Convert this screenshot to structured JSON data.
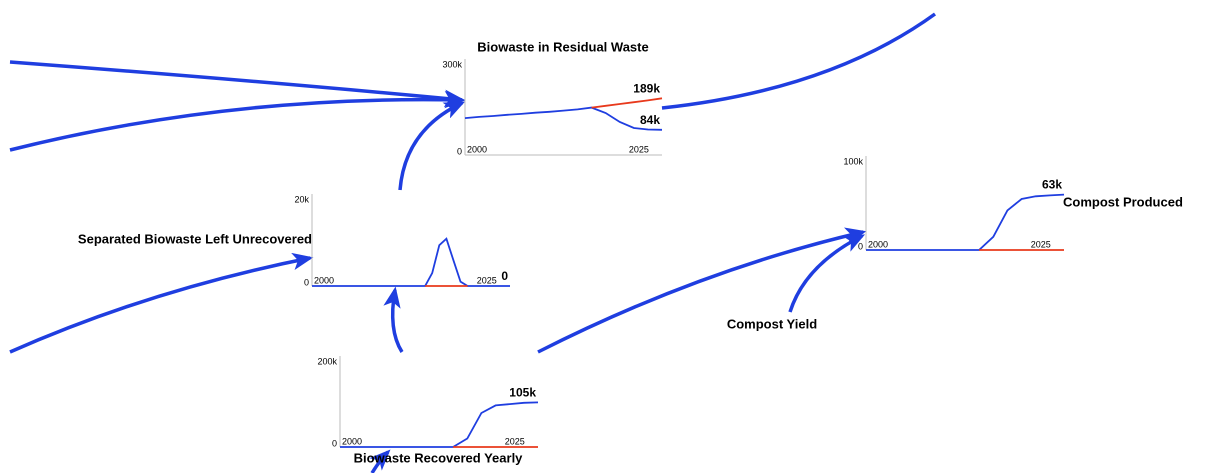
{
  "nodes": [
    {
      "label": "Biowaste in Residual Waste",
      "chart": {
        "xlim": [
          2000,
          2028
        ],
        "ylim": [
          0,
          300000
        ],
        "xticks": [
          2000,
          2025
        ],
        "yticks": [
          0,
          {
            "value": 300000,
            "label": "300k"
          }
        ],
        "x": [
          2000,
          2002,
          2004,
          2006,
          2008,
          2010,
          2012,
          2014,
          2016,
          2018,
          2020,
          2022,
          2024,
          2026,
          2028
        ],
        "series": [
          {
            "color": "#1f3ee0",
            "values": [
              123000,
              127000,
              130000,
              134000,
              137000,
              141000,
              144000,
              148000,
              152000,
              158000,
              140000,
              110000,
              90000,
              85000,
              84000
            ],
            "end_label": {
              "value": 84000,
              "label": "84k"
            }
          },
          {
            "color": "#e8391c",
            "values": [
              null,
              null,
              null,
              null,
              null,
              null,
              null,
              null,
              null,
              158000,
              164000,
              170000,
              176000,
              182000,
              189000
            ],
            "end_label": {
              "value": 189000,
              "label": "189k"
            }
          }
        ]
      }
    },
    {
      "label": "Separated Biowaste Left Unrecovered",
      "chart": {
        "xlim": [
          2000,
          2028
        ],
        "ylim": [
          0,
          20000
        ],
        "xticks": [
          2000,
          2025
        ],
        "yticks": [
          0,
          {
            "value": 20000,
            "label": "20k"
          }
        ],
        "x": [
          2000,
          2002,
          2004,
          2006,
          2008,
          2010,
          2012,
          2014,
          2016,
          2017,
          2018,
          2019,
          2020,
          2021,
          2022,
          2024,
          2026,
          2028
        ],
        "series": [
          {
            "color": "#1f3ee0",
            "values": [
              0,
              0,
              0,
              0,
              0,
              0,
              0,
              0,
              0,
              3000,
              9500,
              11000,
              6000,
              1000,
              0,
              0,
              0,
              0
            ],
            "end_label": 0
          },
          {
            "color": "#e8391c",
            "values": [
              null,
              null,
              null,
              null,
              null,
              null,
              null,
              null,
              0,
              0,
              0,
              0,
              0,
              0,
              0,
              null,
              null,
              null
            ]
          }
        ]
      }
    },
    {
      "label": "Biowaste Recovered Yearly",
      "chart": {
        "xlim": [
          2000,
          2028
        ],
        "ylim": [
          0,
          200000
        ],
        "xticks": [
          2000,
          2025
        ],
        "yticks": [
          0,
          {
            "value": 200000,
            "label": "200k"
          }
        ],
        "x": [
          2000,
          2002,
          2004,
          2006,
          2008,
          2010,
          2012,
          2014,
          2016,
          2018,
          2020,
          2022,
          2024,
          2026,
          2028
        ],
        "series": [
          {
            "color": "#1f3ee0",
            "values": [
              0,
              0,
              0,
              0,
              0,
              0,
              0,
              0,
              0,
              20000,
              80000,
              98000,
              101000,
              104000,
              105000
            ],
            "end_label": {
              "value": 105000,
              "label": "105k"
            }
          },
          {
            "color": "#e8391c",
            "values": [
              null,
              null,
              null,
              null,
              null,
              null,
              null,
              null,
              0,
              0,
              0,
              0,
              0,
              0,
              0
            ]
          }
        ]
      }
    },
    {
      "label": "Compost Produced",
      "chart": {
        "xlim": [
          2000,
          2028
        ],
        "ylim": [
          0,
          100000
        ],
        "xticks": [
          2000,
          2025
        ],
        "yticks": [
          0,
          {
            "value": 100000,
            "label": "100k"
          }
        ],
        "x": [
          2000,
          2002,
          2004,
          2006,
          2008,
          2010,
          2012,
          2014,
          2016,
          2018,
          2020,
          2022,
          2024,
          2026,
          2028
        ],
        "series": [
          {
            "color": "#1f3ee0",
            "values": [
              0,
              0,
              0,
              0,
              0,
              0,
              0,
              0,
              0,
              15000,
              45000,
              58000,
              61000,
              62000,
              63000
            ],
            "end_label": {
              "value": 63000,
              "label": "63k"
            }
          },
          {
            "color": "#e8391c",
            "values": [
              null,
              null,
              null,
              null,
              null,
              null,
              null,
              null,
              0,
              0,
              0,
              0,
              0,
              0,
              0
            ]
          }
        ]
      }
    },
    {
      "label": "Compost Yield"
    }
  ]
}
